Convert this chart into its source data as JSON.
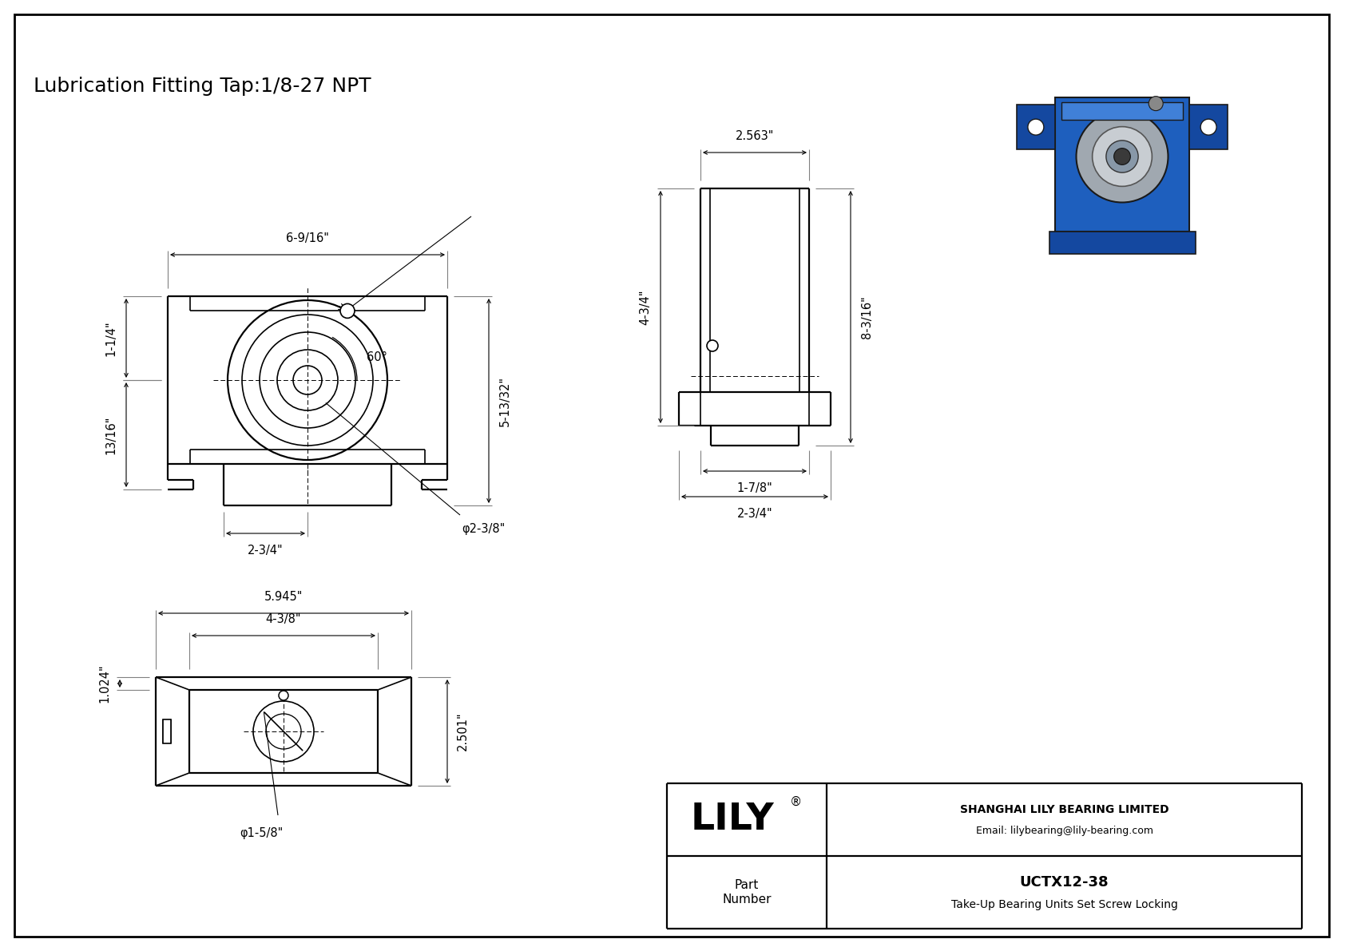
{
  "title": "Lubrication Fitting Tap:1/8-27 NPT",
  "bg_color": "#ffffff",
  "line_color": "#000000",
  "title_fontsize": 18,
  "dim_fontsize": 10.5,
  "lily_fontsize": 34,
  "company": "SHANGHAI LILY BEARING LIMITED",
  "email": "Email: lilybearing@lily-bearing.com",
  "part_number": "UCTX12-38",
  "description": "Take-Up Bearing Units Set Screw Locking",
  "dims": {
    "front_width": "6-9/16\"",
    "front_height": "5-13/32\"",
    "front_offset": "1-1/4\"",
    "front_base": "13/16\"",
    "front_center": "2-3/4\"",
    "front_bore": "φ2-3/8\"",
    "side_top": "2.563\"",
    "side_height": "4-3/4\"",
    "side_total": "8-3/16\"",
    "side_base_w": "1-7/8\"",
    "side_base_total": "2-3/4\"",
    "bottom_total": "5.945\"",
    "bottom_center": "4-3/8\"",
    "bottom_height": "2.501\"",
    "bottom_side": "1.024\"",
    "bottom_bore": "φ1-5/8\"",
    "angle": "60°"
  }
}
